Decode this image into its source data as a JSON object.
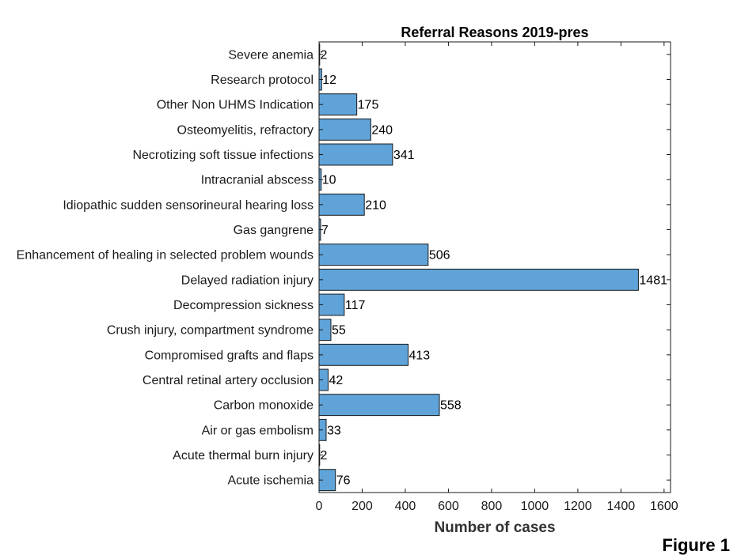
{
  "chart_data": {
    "type": "bar",
    "orientation": "horizontal",
    "title": "Referral Reasons 2019-pres",
    "xlabel": "Number of cases",
    "ylabel": "",
    "xlim": [
      0,
      1630
    ],
    "xticks": [
      0,
      200,
      400,
      600,
      800,
      1000,
      1200,
      1400,
      1600
    ],
    "categories": [
      "Severe anemia",
      "Research protocol",
      "Other Non UHMS Indication",
      "Osteomyelitis, refractory",
      "Necrotizing soft tissue infections",
      "Intracranial abscess",
      "Idiopathic sudden sensorineural hearing loss",
      "Gas gangrene",
      "Enhancement of healing in selected problem wounds",
      "Delayed radiation injury",
      "Decompression sickness",
      "Crush injury, compartment syndrome",
      "Compromised grafts and flaps",
      "Central retinal artery occlusion",
      "Carbon monoxide",
      "Air or gas embolism",
      "Acute thermal burn injury",
      "Acute ischemia"
    ],
    "values": [
      2,
      12,
      175,
      240,
      341,
      10,
      210,
      7,
      506,
      1481,
      117,
      55,
      413,
      42,
      558,
      33,
      2,
      76
    ],
    "bar_color": "#5fa3d8",
    "edge_color": "#1a1a1a",
    "grid": false
  },
  "figure_label": "Figure 1"
}
